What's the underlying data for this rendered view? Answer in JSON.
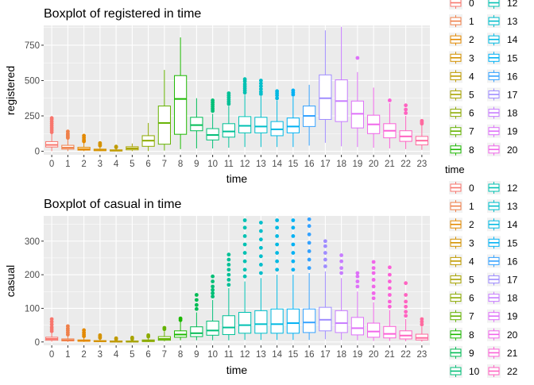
{
  "palette": [
    "#F8766D",
    "#EF7F49",
    "#E38900",
    "#D49200",
    "#C09B00",
    "#A8A400",
    "#8CAB00",
    "#64B200",
    "#1CB800",
    "#00BC54",
    "#00BF77",
    "#00C096",
    "#00C1B2",
    "#00BECB",
    "#00B9E2",
    "#00B1F4",
    "#35A2FF",
    "#9F8CFF",
    "#C77CFF",
    "#DE71F9",
    "#F066EA",
    "#FB61D7",
    "#FF63C1",
    "#FF6A9F"
  ],
  "legend": {
    "title": "time",
    "top_labels": [
      "0",
      "1",
      "2",
      "3",
      "4",
      "5",
      "6",
      "7",
      "8",
      "12",
      "13",
      "14",
      "15",
      "16",
      "17",
      "18",
      "19",
      "20"
    ],
    "bottom_labels": [
      "0",
      "1",
      "2",
      "3",
      "4",
      "5",
      "6",
      "7",
      "8",
      "9",
      "10",
      "12",
      "13",
      "14",
      "15",
      "16",
      "17",
      "18",
      "19",
      "20",
      "21",
      "22"
    ]
  },
  "chart_data": [
    {
      "type": "boxplot",
      "title": "Boxplot of registered in time",
      "xlabel": "time",
      "ylabel": "registered",
      "categories": [
        "0",
        "1",
        "2",
        "3",
        "4",
        "5",
        "6",
        "7",
        "8",
        "9",
        "10",
        "11",
        "12",
        "13",
        "14",
        "15",
        "16",
        "17",
        "18",
        "19",
        "20",
        "21",
        "22",
        "23"
      ],
      "ylim": [
        -25,
        890
      ],
      "yticks": [
        0,
        250,
        500,
        750
      ],
      "boxes": [
        {
          "lw": 1,
          "q1": 30,
          "med": 45,
          "q3": 68,
          "hi": 125,
          "outliers": [
            135,
            150,
            165,
            180,
            195,
            210,
            225,
            235
          ]
        },
        {
          "lw": 1,
          "q1": 15,
          "med": 25,
          "q3": 42,
          "hi": 85,
          "outliers": [
            95,
            105,
            115,
            125,
            140
          ]
        },
        {
          "lw": 1,
          "q1": 8,
          "med": 15,
          "q3": 28,
          "hi": 60,
          "outliers": [
            70,
            80,
            95,
            110
          ]
        },
        {
          "lw": 1,
          "q1": 4,
          "med": 8,
          "q3": 15,
          "hi": 32,
          "outliers": [
            40,
            48,
            58
          ]
        },
        {
          "lw": 1,
          "q1": 2,
          "med": 5,
          "q3": 10,
          "hi": 22,
          "outliers": [
            28,
            33
          ]
        },
        {
          "lw": 1,
          "q1": 10,
          "med": 20,
          "q3": 32,
          "hi": 55,
          "outliers": []
        },
        {
          "lw": 2,
          "q1": 35,
          "med": 75,
          "q3": 110,
          "hi": 200,
          "outliers": []
        },
        {
          "lw": 5,
          "q1": 50,
          "med": 200,
          "q3": 320,
          "hi": 575,
          "outliers": []
        },
        {
          "lw": 15,
          "q1": 120,
          "med": 370,
          "q3": 535,
          "hi": 805,
          "outliers": []
        },
        {
          "lw": 20,
          "q1": 145,
          "med": 185,
          "q3": 240,
          "hi": 375,
          "outliers": []
        },
        {
          "lw": 20,
          "q1": 80,
          "med": 115,
          "q3": 160,
          "hi": 265,
          "outliers": [
            285,
            300,
            315,
            330,
            345,
            360
          ]
        },
        {
          "lw": 25,
          "q1": 100,
          "med": 140,
          "q3": 195,
          "hi": 320,
          "outliers": [
            335,
            350,
            365,
            380,
            395,
            410
          ]
        },
        {
          "lw": 30,
          "q1": 130,
          "med": 180,
          "q3": 245,
          "hi": 400,
          "outliers": [
            415,
            430,
            445,
            460,
            475,
            495,
            510
          ]
        },
        {
          "lw": 30,
          "q1": 130,
          "med": 175,
          "q3": 240,
          "hi": 390,
          "outliers": [
            405,
            420,
            440,
            460,
            480,
            500
          ]
        },
        {
          "lw": 30,
          "q1": 110,
          "med": 155,
          "q3": 210,
          "hi": 360,
          "outliers": [
            375,
            395,
            410,
            425
          ]
        },
        {
          "lw": 30,
          "q1": 130,
          "med": 175,
          "q3": 235,
          "hi": 385,
          "outliers": [
            400,
            415,
            430
          ]
        },
        {
          "lw": 40,
          "q1": 175,
          "med": 250,
          "q3": 320,
          "hi": 470,
          "outliers": []
        },
        {
          "lw": 60,
          "q1": 225,
          "med": 375,
          "q3": 540,
          "hi": 855,
          "outliers": []
        },
        {
          "lw": 35,
          "q1": 210,
          "med": 355,
          "q3": 505,
          "hi": 880,
          "outliers": []
        },
        {
          "lw": 30,
          "q1": 165,
          "med": 265,
          "q3": 355,
          "hi": 560,
          "outliers": [
            660
          ]
        },
        {
          "lw": 25,
          "q1": 125,
          "med": 190,
          "q3": 255,
          "hi": 450,
          "outliers": []
        },
        {
          "lw": 20,
          "q1": 95,
          "med": 145,
          "q3": 195,
          "hi": 340,
          "outliers": [
            360
          ]
        },
        {
          "lw": 15,
          "q1": 70,
          "med": 105,
          "q3": 145,
          "hi": 250,
          "outliers": [
            270,
            295,
            325
          ]
        },
        {
          "lw": 10,
          "q1": 45,
          "med": 75,
          "q3": 105,
          "hi": 185,
          "outliers": [
            195,
            205,
            215
          ]
        }
      ]
    },
    {
      "type": "boxplot",
      "title": "Boxplot of casual in time",
      "xlabel": "time",
      "ylabel": "casual",
      "categories": [
        "0",
        "1",
        "2",
        "3",
        "4",
        "5",
        "6",
        "7",
        "8",
        "9",
        "10",
        "11",
        "12",
        "13",
        "14",
        "15",
        "16",
        "17",
        "18",
        "19",
        "20",
        "21",
        "22",
        "23"
      ],
      "ylim": [
        -10,
        375
      ],
      "yticks": [
        0,
        100,
        200,
        300
      ],
      "boxes": [
        {
          "lw": 1,
          "q1": 5,
          "med": 9,
          "q3": 14,
          "hi": 27,
          "outliers": [
            32,
            38,
            44,
            52,
            60,
            68
          ]
        },
        {
          "lw": 0,
          "q1": 3,
          "med": 5,
          "q3": 9,
          "hi": 18,
          "outliers": [
            22,
            28,
            34,
            40,
            47
          ]
        },
        {
          "lw": 0,
          "q1": 2,
          "med": 3,
          "q3": 6,
          "hi": 13,
          "outliers": [
            17,
            22,
            28,
            35
          ]
        },
        {
          "lw": 0,
          "q1": 1,
          "med": 2,
          "q3": 4,
          "hi": 9,
          "outliers": [
            12,
            16,
            20
          ]
        },
        {
          "lw": 0,
          "q1": 0,
          "med": 1,
          "q3": 3,
          "hi": 6,
          "outliers": [
            8,
            11
          ]
        },
        {
          "lw": 0,
          "q1": 0,
          "med": 1,
          "q3": 3,
          "hi": 6,
          "outliers": [
            9,
            13
          ]
        },
        {
          "lw": 0,
          "q1": 1,
          "med": 3,
          "q3": 6,
          "hi": 13,
          "outliers": [
            16,
            20
          ]
        },
        {
          "lw": 2,
          "q1": 5,
          "med": 9,
          "q3": 16,
          "hi": 32,
          "outliers": [
            38,
            42
          ]
        },
        {
          "lw": 5,
          "q1": 14,
          "med": 22,
          "q3": 33,
          "hi": 60,
          "outliers": [
            65,
            70
          ]
        },
        {
          "lw": 5,
          "q1": 16,
          "med": 26,
          "q3": 45,
          "hi": 88,
          "outliers": [
            98,
            110,
            125,
            140
          ]
        },
        {
          "lw": 5,
          "q1": 20,
          "med": 34,
          "q3": 62,
          "hi": 125,
          "outliers": [
            135,
            145,
            155,
            165,
            180,
            195
          ]
        },
        {
          "lw": 5,
          "q1": 22,
          "med": 43,
          "q3": 78,
          "hi": 160,
          "outliers": [
            170,
            185,
            200,
            215,
            230,
            245,
            260
          ]
        },
        {
          "lw": 6,
          "q1": 26,
          "med": 50,
          "q3": 88,
          "hi": 180,
          "outliers": [
            195,
            215,
            240,
            265,
            290,
            315,
            340,
            362
          ]
        },
        {
          "lw": 6,
          "q1": 26,
          "med": 53,
          "q3": 93,
          "hi": 190,
          "outliers": [
            205,
            230,
            255,
            280,
            305,
            330,
            355
          ]
        },
        {
          "lw": 6,
          "q1": 26,
          "med": 53,
          "q3": 98,
          "hi": 200,
          "outliers": [
            215,
            240,
            265,
            290,
            315,
            340,
            362
          ]
        },
        {
          "lw": 6,
          "q1": 26,
          "med": 56,
          "q3": 98,
          "hi": 200,
          "outliers": [
            215,
            240,
            265,
            290,
            315,
            340,
            362
          ]
        },
        {
          "lw": 6,
          "q1": 28,
          "med": 58,
          "q3": 98,
          "hi": 205,
          "outliers": [
            220,
            245,
            270,
            295,
            320,
            345,
            365
          ]
        },
        {
          "lw": 8,
          "q1": 33,
          "med": 66,
          "q3": 103,
          "hi": 210,
          "outliers": [
            225,
            245,
            265,
            285,
            300
          ]
        },
        {
          "lw": 6,
          "q1": 28,
          "med": 56,
          "q3": 93,
          "hi": 190,
          "outliers": [
            205,
            220,
            240,
            258
          ]
        },
        {
          "lw": 5,
          "q1": 21,
          "med": 41,
          "q3": 73,
          "hi": 150,
          "outliers": [
            165,
            180,
            195,
            205
          ]
        },
        {
          "lw": 3,
          "q1": 14,
          "med": 31,
          "q3": 56,
          "hi": 118,
          "outliers": [
            130,
            145,
            165,
            185,
            205,
            220,
            238
          ]
        },
        {
          "lw": 3,
          "q1": 12,
          "med": 24,
          "q3": 46,
          "hi": 95,
          "outliers": [
            105,
            120,
            140,
            160,
            180,
            200,
            222
          ]
        },
        {
          "lw": 2,
          "q1": 9,
          "med": 19,
          "q3": 33,
          "hi": 68,
          "outliers": [
            78,
            90,
            105,
            120,
            140,
            175
          ]
        },
        {
          "lw": 1,
          "q1": 6,
          "med": 12,
          "q3": 23,
          "hi": 46,
          "outliers": [
            52,
            60,
            68
          ]
        }
      ]
    }
  ]
}
